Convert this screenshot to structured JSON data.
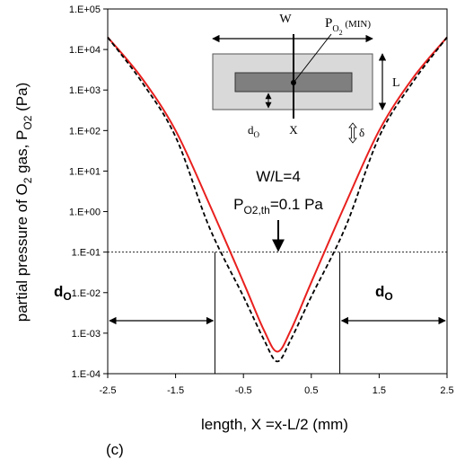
{
  "chart_data": {
    "type": "line",
    "title": "",
    "xlabel": "length, X =x-L/2 (mm)",
    "ylabel_parts": [
      "partial pressure of O",
      "2",
      " gas, P",
      "O2",
      " (Pa)"
    ],
    "xlim": [
      -2.5,
      2.5
    ],
    "ylim_exponent": [
      -4,
      5
    ],
    "y_scale": "log",
    "x_ticks": [
      "-2.5",
      "-1.5",
      "-0.5",
      "0.5",
      "1.5",
      "2.5"
    ],
    "y_ticks": [
      "1.E-04",
      "1.E-03",
      "1.E-02",
      "1.E-01",
      "1.E+00",
      "1.E+01",
      "1.E+02",
      "1.E+03",
      "1.E+04",
      "1.E+05"
    ],
    "series": [
      {
        "style": "solid",
        "color": "#e8201e",
        "x": [
          -2.5,
          -2.0,
          -1.5,
          -1.0,
          -0.5,
          -0.2,
          0.0,
          0.2,
          0.5,
          1.0,
          1.5,
          2.0,
          2.5
        ],
        "y": [
          20000,
          2000,
          100,
          1.5,
          0.018,
          0.0012,
          0.00035,
          0.0012,
          0.018,
          1.5,
          100,
          2000,
          20000
        ]
      },
      {
        "style": "dashed",
        "color": "#000000",
        "x": [
          -2.5,
          -2.0,
          -1.5,
          -1.0,
          -0.5,
          -0.2,
          0.0,
          0.2,
          0.5,
          1.0,
          1.5,
          2.0,
          2.5
        ],
        "y": [
          20000,
          1600,
          70,
          0.4,
          0.008,
          0.0007,
          0.0002,
          0.0007,
          0.008,
          0.4,
          70,
          1600,
          20000
        ]
      }
    ],
    "threshold_y": 0.1,
    "d0_x": [
      -0.92,
      0.92
    ],
    "annotations": {
      "ratio": "W/L=4",
      "threshold_prefix": "P",
      "threshold_sub": "O2,th",
      "threshold_suffix": "=0.1 Pa",
      "d_main": "d",
      "d_sub": "O"
    },
    "inset": {
      "w": "W",
      "p_main": "P",
      "p_sub1": "O",
      "p_sub2": "2",
      "p_suffix": " (MIN)",
      "l": "L",
      "x": "X",
      "d_main": "d",
      "d_sub": "O",
      "delta": "δ"
    }
  },
  "figure_label": "(c)"
}
